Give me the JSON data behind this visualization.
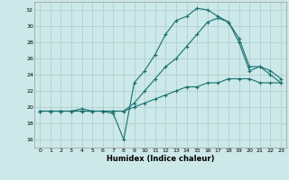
{
  "xlabel": "Humidex (Indice chaleur)",
  "bg_color": "#cce8e8",
  "grid_color": "#aacccc",
  "line_color": "#1a7070",
  "xlim": [
    -0.5,
    23.5
  ],
  "ylim": [
    15,
    33
  ],
  "yticks": [
    16,
    18,
    20,
    22,
    24,
    26,
    28,
    30,
    32
  ],
  "xticks": [
    0,
    1,
    2,
    3,
    4,
    5,
    6,
    7,
    8,
    9,
    10,
    11,
    12,
    13,
    14,
    15,
    16,
    17,
    18,
    19,
    20,
    21,
    22,
    23
  ],
  "series1_y": [
    19.5,
    19.5,
    19.5,
    19.5,
    19.8,
    19.5,
    19.5,
    19.2,
    16.0,
    23.0,
    24.5,
    26.5,
    29.0,
    30.7,
    31.2,
    32.2,
    32.0,
    31.2,
    30.5,
    28.0,
    24.5,
    25.0,
    24.0,
    23.0
  ],
  "series2_y": [
    19.5,
    19.5,
    19.5,
    19.5,
    19.5,
    19.5,
    19.5,
    19.5,
    19.5,
    20.0,
    20.5,
    21.0,
    21.5,
    22.0,
    22.5,
    22.5,
    23.0,
    23.0,
    23.5,
    23.5,
    23.5,
    23.0,
    23.0,
    23.0
  ],
  "series3_y": [
    19.5,
    19.5,
    19.5,
    19.5,
    19.5,
    19.5,
    19.5,
    19.5,
    19.5,
    20.5,
    22.0,
    23.5,
    25.0,
    26.0,
    27.5,
    29.0,
    30.5,
    31.0,
    30.5,
    28.5,
    25.0,
    25.0,
    24.5,
    23.5
  ]
}
